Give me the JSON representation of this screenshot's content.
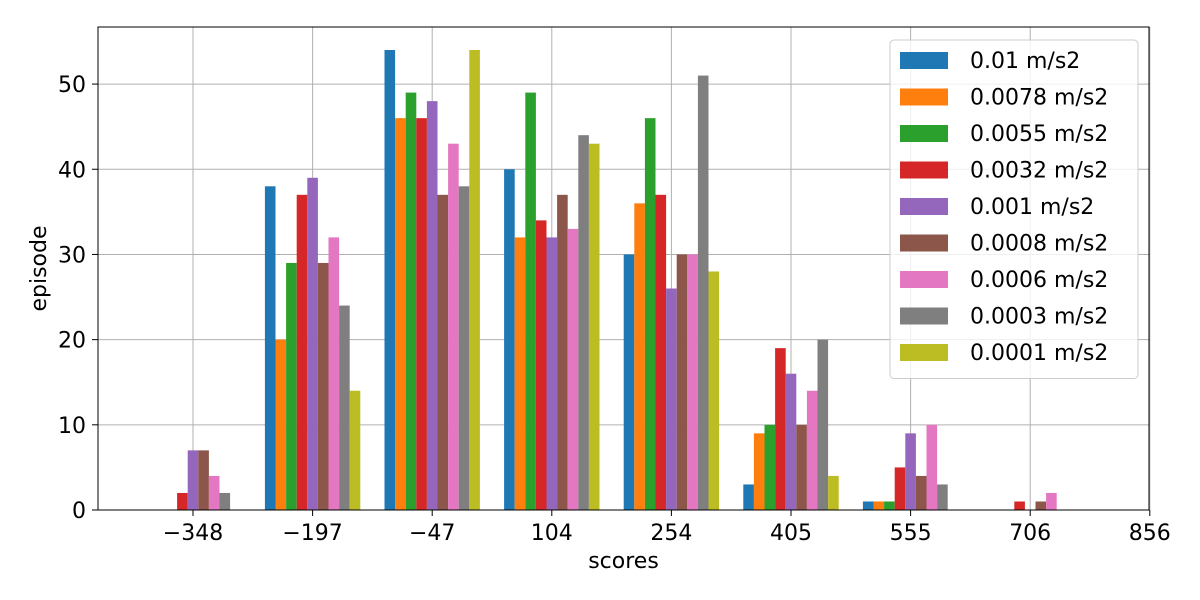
{
  "chart_data": {
    "type": "bar",
    "title": "",
    "xlabel": "scores",
    "ylabel": "episode",
    "categories": [
      "−348",
      "−197",
      "−47",
      "104",
      "254",
      "405",
      "555",
      "706"
    ],
    "xticks": [
      "−348",
      "−197",
      "−47",
      "104",
      "254",
      "405",
      "555",
      "706",
      "856"
    ],
    "ylim": [
      0,
      56.7
    ],
    "yticks": [
      0,
      10,
      20,
      30,
      40,
      50
    ],
    "grid": true,
    "legend_position": "top-right",
    "series": [
      {
        "name": "0.01 m/s2",
        "color": "#1f77b4",
        "values": [
          0,
          38,
          54,
          40,
          30,
          3,
          1,
          0
        ]
      },
      {
        "name": "0.0078 m/s2",
        "color": "#ff7f0e",
        "values": [
          0,
          20,
          46,
          32,
          36,
          9,
          1,
          0
        ]
      },
      {
        "name": "0.0055 m/s2",
        "color": "#2ca02c",
        "values": [
          0,
          29,
          49,
          49,
          46,
          10,
          1,
          0
        ]
      },
      {
        "name": "0.0032 m/s2",
        "color": "#d62728",
        "values": [
          2,
          37,
          46,
          34,
          37,
          19,
          5,
          1
        ]
      },
      {
        "name": "0.001 m/s2",
        "color": "#9467bd",
        "values": [
          7,
          39,
          48,
          32,
          26,
          16,
          9,
          0
        ]
      },
      {
        "name": "0.0008 m/s2",
        "color": "#8c564b",
        "values": [
          7,
          29,
          37,
          37,
          30,
          10,
          4,
          1
        ]
      },
      {
        "name": "0.0006 m/s2",
        "color": "#e377c2",
        "values": [
          4,
          32,
          43,
          33,
          30,
          14,
          10,
          2
        ]
      },
      {
        "name": "0.0003 m/s2",
        "color": "#7f7f7f",
        "values": [
          2,
          24,
          38,
          44,
          51,
          20,
          3,
          0
        ]
      },
      {
        "name": "0.0001 m/s2",
        "color": "#bcbd22",
        "values": [
          0,
          14,
          54,
          43,
          28,
          4,
          0,
          0
        ]
      }
    ]
  }
}
